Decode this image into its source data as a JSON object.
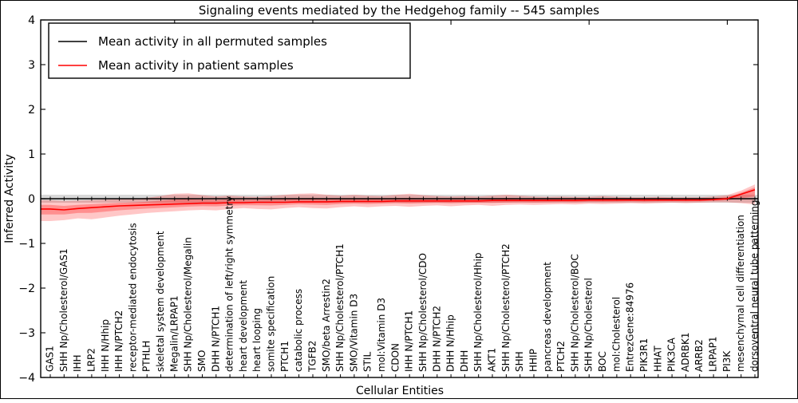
{
  "chart_data": {
    "type": "line",
    "title": "Signaling events mediated by the Hedgehog family -- 545 samples",
    "xlabel": "Cellular Entities",
    "ylabel": "Inferred Activity",
    "ylim": [
      -4,
      4
    ],
    "grid": false,
    "legend_position": "upper left",
    "yticks": {
      "values": [
        4,
        3,
        2,
        1,
        0,
        -1,
        -2,
        -3,
        -4
      ],
      "labels": [
        "4",
        "3",
        "2",
        "1",
        "0",
        "−1",
        "−2",
        "−3",
        "−4"
      ]
    },
    "xtick_major_indices": [
      9,
      19,
      29,
      39,
      49
    ],
    "categories": [
      "GAS1",
      "SHH Np/Cholesterol/GAS1",
      "IHH",
      "LRP2",
      "IHH N/Hhip",
      "IHH N/PTCH2",
      "receptor-mediated endocytosis",
      "PTHLH",
      "skeletal system development",
      "Megalin/LRPAP1",
      "SHH Np/Cholesterol/Megalin",
      "SMO",
      "DHH N/PTCH1",
      "determination of left/right symmetry",
      "heart development",
      "heart looping",
      "somite specification",
      "PTCH1",
      "catabolic process",
      "TGFB2",
      "SMO/beta Arrestin2",
      "SHH Np/Cholesterol/PTCH1",
      "SMO/Vitamin D3",
      "STIL",
      "mol:Vitamin D3",
      "CDON",
      "IHH N/PTCH1",
      "SHH Np/Cholesterol/CDO",
      "DHH N/PTCH2",
      "DHH N/Hhip",
      "DHH",
      "SHH Np/Cholesterol/Hhip",
      "AKT1",
      "SHH Np/Cholesterol/PTCH2",
      "SHH",
      "HHIP",
      "pancreas development",
      "PTCH2",
      "SHH Np/Cholesterol/BOC",
      "SHH Np/Cholesterol",
      "BOC",
      "mol:Cholesterol",
      "EntrezGene:84976",
      "PIK3R1",
      "HHAT",
      "PIK3CA",
      "ADRBK1",
      "ARRB2",
      "LRPAP1",
      "PI3K",
      "mesenchymal cell differentiation",
      "dorsoventral neural tube patterning"
    ],
    "series": [
      {
        "name": "Mean activity in all permuted samples",
        "color": "#000000",
        "marker": "|",
        "values_constant": 0,
        "band_upper_constant": 0.09,
        "band_lower_constant": -0.09,
        "band_color": "#bfbfbf",
        "band_opacity": 0.6
      },
      {
        "name": "Mean activity in patient samples",
        "color": "#ff0000",
        "marker": "none",
        "values": [
          -0.23,
          -0.25,
          -0.22,
          -0.2,
          -0.18,
          -0.16,
          -0.15,
          -0.14,
          -0.13,
          -0.12,
          -0.11,
          -0.1,
          -0.1,
          -0.09,
          -0.09,
          -0.08,
          -0.08,
          -0.08,
          -0.07,
          -0.07,
          -0.07,
          -0.06,
          -0.06,
          -0.06,
          -0.06,
          -0.05,
          -0.05,
          -0.05,
          -0.05,
          -0.05,
          -0.05,
          -0.05,
          -0.04,
          -0.04,
          -0.04,
          -0.04,
          -0.04,
          -0.04,
          -0.04,
          -0.03,
          -0.03,
          -0.03,
          -0.03,
          -0.03,
          -0.03,
          -0.03,
          -0.03,
          -0.03,
          -0.02,
          0.0,
          0.1,
          0.2
        ],
        "band_upper": [
          -0.03,
          -0.05,
          -0.04,
          -0.03,
          -0.02,
          -0.01,
          0.0,
          0.02,
          0.06,
          0.11,
          0.12,
          0.08,
          0.05,
          0.07,
          0.05,
          0.04,
          0.06,
          0.09,
          0.11,
          0.12,
          0.09,
          0.07,
          0.09,
          0.07,
          0.06,
          0.09,
          0.11,
          0.08,
          0.06,
          0.05,
          0.06,
          0.05,
          0.07,
          0.09,
          0.07,
          0.05,
          0.04,
          0.05,
          0.04,
          0.04,
          0.06,
          0.04,
          0.03,
          0.03,
          0.04,
          0.03,
          0.03,
          0.03,
          0.05,
          0.08,
          0.18,
          0.32
        ],
        "band_lower": [
          -0.5,
          -0.48,
          -0.44,
          -0.46,
          -0.42,
          -0.38,
          -0.35,
          -0.32,
          -0.3,
          -0.28,
          -0.26,
          -0.25,
          -0.26,
          -0.23,
          -0.21,
          -0.23,
          -0.24,
          -0.21,
          -0.19,
          -0.21,
          -0.22,
          -0.19,
          -0.17,
          -0.19,
          -0.17,
          -0.16,
          -0.18,
          -0.16,
          -0.15,
          -0.17,
          -0.15,
          -0.14,
          -0.16,
          -0.14,
          -0.13,
          -0.14,
          -0.13,
          -0.12,
          -0.13,
          -0.11,
          -0.12,
          -0.11,
          -0.1,
          -0.11,
          -0.1,
          -0.09,
          -0.1,
          -0.09,
          -0.08,
          -0.08,
          -0.1,
          -0.13
        ],
        "band_color": "#ff0000",
        "band_outer_opacity": 0.22,
        "band_inner_opacity": 0.28,
        "band_inner_scale": 0.45
      }
    ]
  }
}
